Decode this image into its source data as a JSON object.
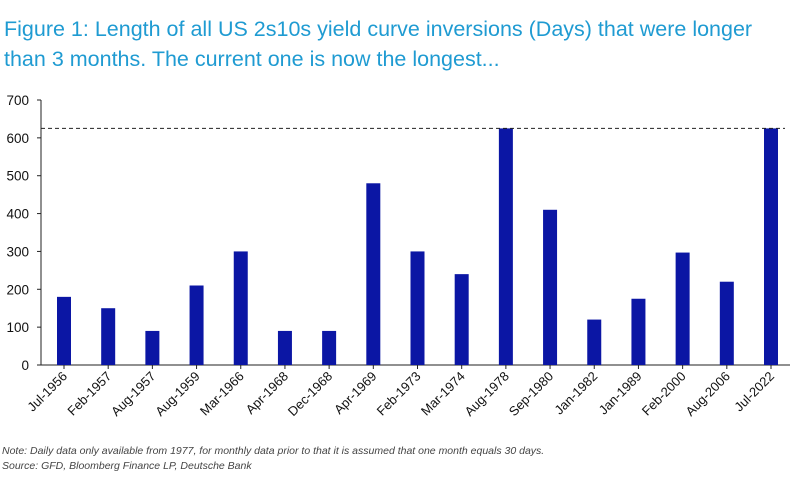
{
  "title": "Figure 1: Length of all US 2s10s yield curve inversions (Days) that were longer than 3 months. The current one is now the longest...",
  "note": "Note: Daily data only available from 1977, for monthly data prior to that it is assumed that one month equals 30 days.",
  "source": "Source: GFD, Bloomberg Finance LP, Deutsche Bank",
  "chart_data": {
    "type": "bar",
    "title": "Figure 1: Length of all US 2s10s yield curve inversions (Days) that were longer than 3 months. The current one is now the longest...",
    "xlabel": "",
    "ylabel": "",
    "ylim": [
      0,
      700
    ],
    "yticks": [
      0,
      100,
      200,
      300,
      400,
      500,
      600,
      700
    ],
    "categories": [
      "Jul-1956",
      "Feb-1957",
      "Aug-1957",
      "Aug-1959",
      "Mar-1966",
      "Apr-1968",
      "Dec-1968",
      "Apr-1969",
      "Feb-1973",
      "Mar-1974",
      "Aug-1978",
      "Sep-1980",
      "Jan-1982",
      "Jan-1989",
      "Feb-2000",
      "Aug-2006",
      "Jul-2022"
    ],
    "values": [
      180,
      150,
      90,
      210,
      300,
      90,
      90,
      480,
      300,
      240,
      625,
      410,
      120,
      175,
      297,
      220,
      625
    ],
    "reference_line": 625,
    "bar_color": "#0b16a4",
    "grid": false,
    "legend": "none"
  }
}
